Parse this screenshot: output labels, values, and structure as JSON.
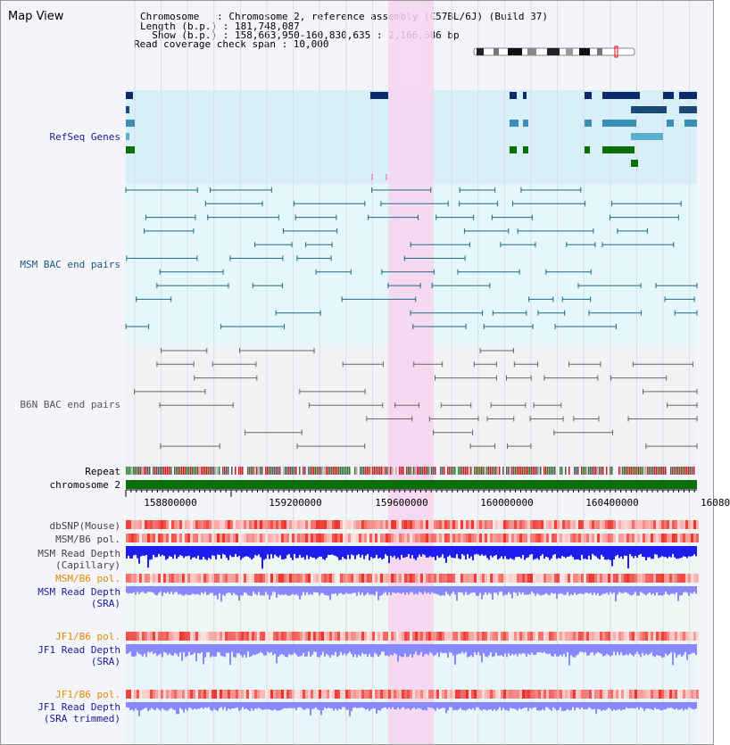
{
  "app": {
    "title": "Map View"
  },
  "info": {
    "line1": "Chromosome   : Chromosome 2, reference assembly (C57BL/6J) (Build 37)",
    "line2": "Length (b.p.) : 181,748,087",
    "line3": "  Show (b.p.) : 158,663,950-160,830,635 : 2,166,686 bp",
    "line4": "Read coverage check span : 10,000"
  },
  "tracks": {
    "refseq": "RefSeq Genes",
    "msm_bac": "MSM BAC end pairs",
    "b6n_bac": "B6N BAC end pairs",
    "repeat": "Repeat",
    "chromosome": "chromosome 2",
    "dbsnp": "dbSNP(Mouse)",
    "msm_b6_pol_1": "MSM/B6 pol.",
    "msm_depth_cap_1": "MSM Read Depth",
    "msm_depth_cap_2": "(Capillary)",
    "msm_b6_pol_2": "MSM/B6 pol.",
    "msm_depth_sra_1": "MSM Read Depth",
    "msm_depth_sra_2": "(SRA)",
    "jf1_b6_pol_1": "JF1/B6 pol.",
    "jf1_depth_sra_1": "JF1 Read Depth",
    "jf1_depth_sra_2": "(SRA)",
    "jf1_b6_pol_2": "JF1/B6 pol.",
    "jf1_depth_trim_1": "JF1 Read Depth",
    "jf1_depth_trim_2": "(SRA trimmed)"
  },
  "ruler": {
    "ticks": [
      "158800000",
      "159200000",
      "159600000",
      "160000000",
      "160400000",
      "16080"
    ]
  },
  "colors": {
    "refseq_bg": "#d8eef9",
    "msm_bg": "#e4f7f9",
    "highlight": "#f7d4ef",
    "chromosome_bar": "#0a6e0a",
    "label_blue": "#1a1a9a",
    "label_orange": "#e08a00",
    "label_gray": "#444444",
    "label_teal": "#1a5a7a",
    "depth_blue": "#1d1dee",
    "depth_light": "#8888ff"
  }
}
